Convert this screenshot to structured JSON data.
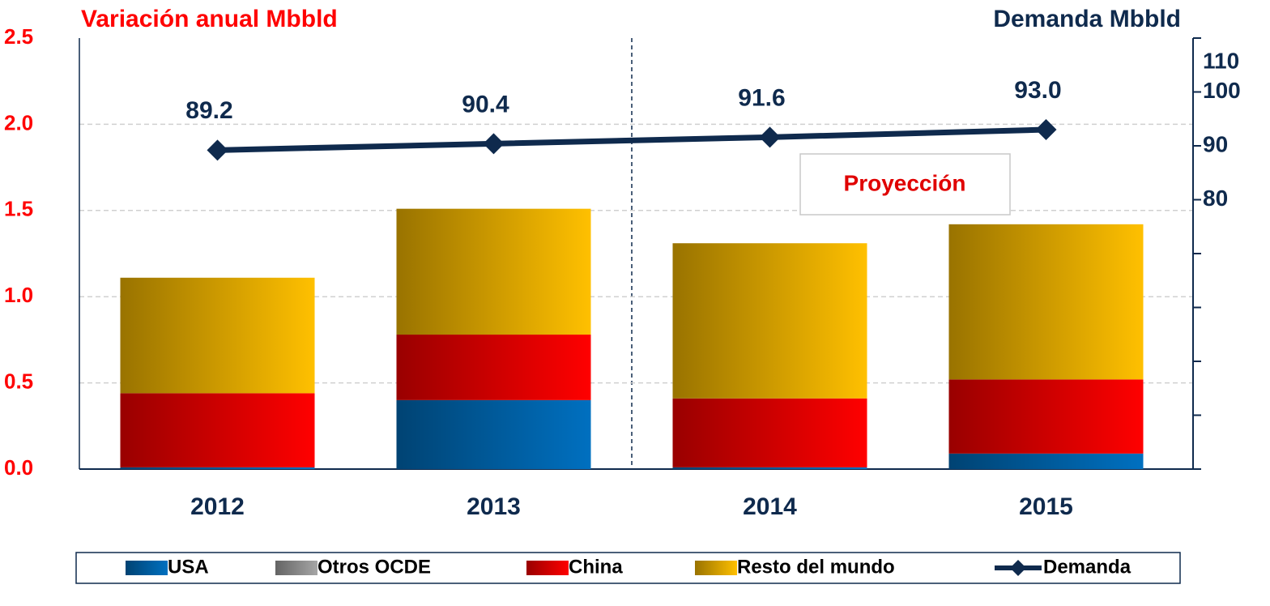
{
  "chart_data": {
    "type": "bar",
    "title": "Variación anual Mbbld",
    "y2_title": "Demanda Mbbld",
    "categories": [
      "2012",
      "2013",
      "2014",
      "2015"
    ],
    "series": [
      {
        "name": "USA",
        "color": "#0070c0",
        "values": [
          0.01,
          0.4,
          0.01,
          0.09
        ]
      },
      {
        "name": "Otros OCDE",
        "color": "#a6a6a6",
        "values": [
          0,
          0,
          0,
          0
        ]
      },
      {
        "name": "China",
        "color": "#ff0000",
        "values": [
          0.43,
          0.38,
          0.4,
          0.43
        ]
      },
      {
        "name": "Resto del mundo",
        "color": "#ffc000",
        "values": [
          0.67,
          0.73,
          0.9,
          0.9
        ]
      },
      {
        "name": "Demanda",
        "type": "line",
        "axis": "y2",
        "color": "#0f2a4d",
        "values": [
          89.2,
          90.4,
          91.6,
          93.0
        ],
        "value_labels": [
          "89.2",
          "90.4",
          "91.6",
          "93.0"
        ]
      }
    ],
    "annotations": [
      "Proyección"
    ],
    "ylim": [
      0,
      2.5
    ],
    "yticks": [
      {
        "value": 0,
        "label": "0.0"
      },
      0.5,
      {
        "value": 1,
        "label": "1.0"
      },
      1.5,
      {
        "value": 2,
        "label": "2.0"
      },
      2.5
    ],
    "y2lim": [
      30,
      110
    ],
    "y2ticks": [
      80,
      90,
      100,
      110
    ],
    "y2ticks_unlabeled": [
      30,
      40,
      50,
      60,
      70
    ],
    "grid": true,
    "legend": "bottom"
  }
}
